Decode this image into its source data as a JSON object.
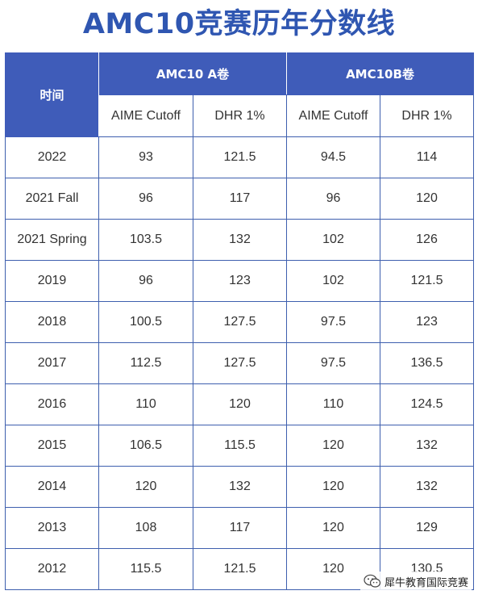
{
  "title": "AMC10竞赛历年分数线",
  "table": {
    "time_header": "时间",
    "group_a": "AMC10 A卷",
    "group_b": "AMC10B卷",
    "subheaders": [
      "AIME Cutoff",
      "DHR 1%",
      "AIME Cutoff",
      "DHR 1%"
    ],
    "rows": [
      {
        "year": "2022",
        "a_aime": "93",
        "a_dhr": "121.5",
        "b_aime": "94.5",
        "b_dhr": "114"
      },
      {
        "year": "2021 Fall",
        "a_aime": "96",
        "a_dhr": "117",
        "b_aime": "96",
        "b_dhr": "120"
      },
      {
        "year": "2021 Spring",
        "a_aime": "103.5",
        "a_dhr": "132",
        "b_aime": "102",
        "b_dhr": "126"
      },
      {
        "year": "2019",
        "a_aime": "96",
        "a_dhr": "123",
        "b_aime": "102",
        "b_dhr": "121.5"
      },
      {
        "year": "2018",
        "a_aime": "100.5",
        "a_dhr": "127.5",
        "b_aime": "97.5",
        "b_dhr": "123"
      },
      {
        "year": "2017",
        "a_aime": "112.5",
        "a_dhr": "127.5",
        "b_aime": "97.5",
        "b_dhr": "136.5"
      },
      {
        "year": "2016",
        "a_aime": "110",
        "a_dhr": "120",
        "b_aime": "110",
        "b_dhr": "124.5"
      },
      {
        "year": "2015",
        "a_aime": "106.5",
        "a_dhr": "115.5",
        "b_aime": "120",
        "b_dhr": "132"
      },
      {
        "year": "2014",
        "a_aime": "120",
        "a_dhr": "132",
        "b_aime": "120",
        "b_dhr": "132"
      },
      {
        "year": "2013",
        "a_aime": "108",
        "a_dhr": "117",
        "b_aime": "120",
        "b_dhr": "129"
      },
      {
        "year": "2012",
        "a_aime": "115.5",
        "a_dhr": "121.5",
        "b_aime": "120",
        "b_dhr": "130.5"
      }
    ]
  },
  "watermark": {
    "text": "犀牛教育国际竞赛",
    "icon": "wechat-icon"
  },
  "colors": {
    "title": "#2f56b1",
    "header_bg": "#3f5cb9",
    "border": "#3e5fae"
  }
}
